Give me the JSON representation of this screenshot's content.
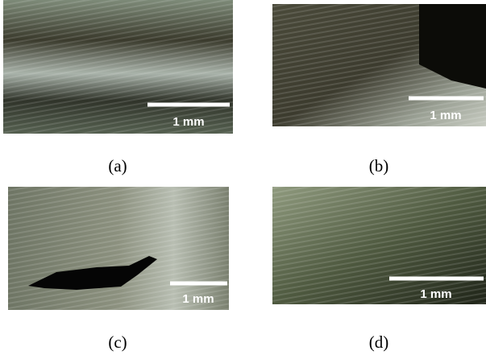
{
  "panels": [
    {
      "label": "(a)",
      "scale_label": "1 mm"
    },
    {
      "label": "(b)",
      "scale_label": "1 mm"
    },
    {
      "label": "(c)",
      "scale_label": "1 mm"
    },
    {
      "label": "(d)",
      "scale_label": "1 mm"
    }
  ]
}
